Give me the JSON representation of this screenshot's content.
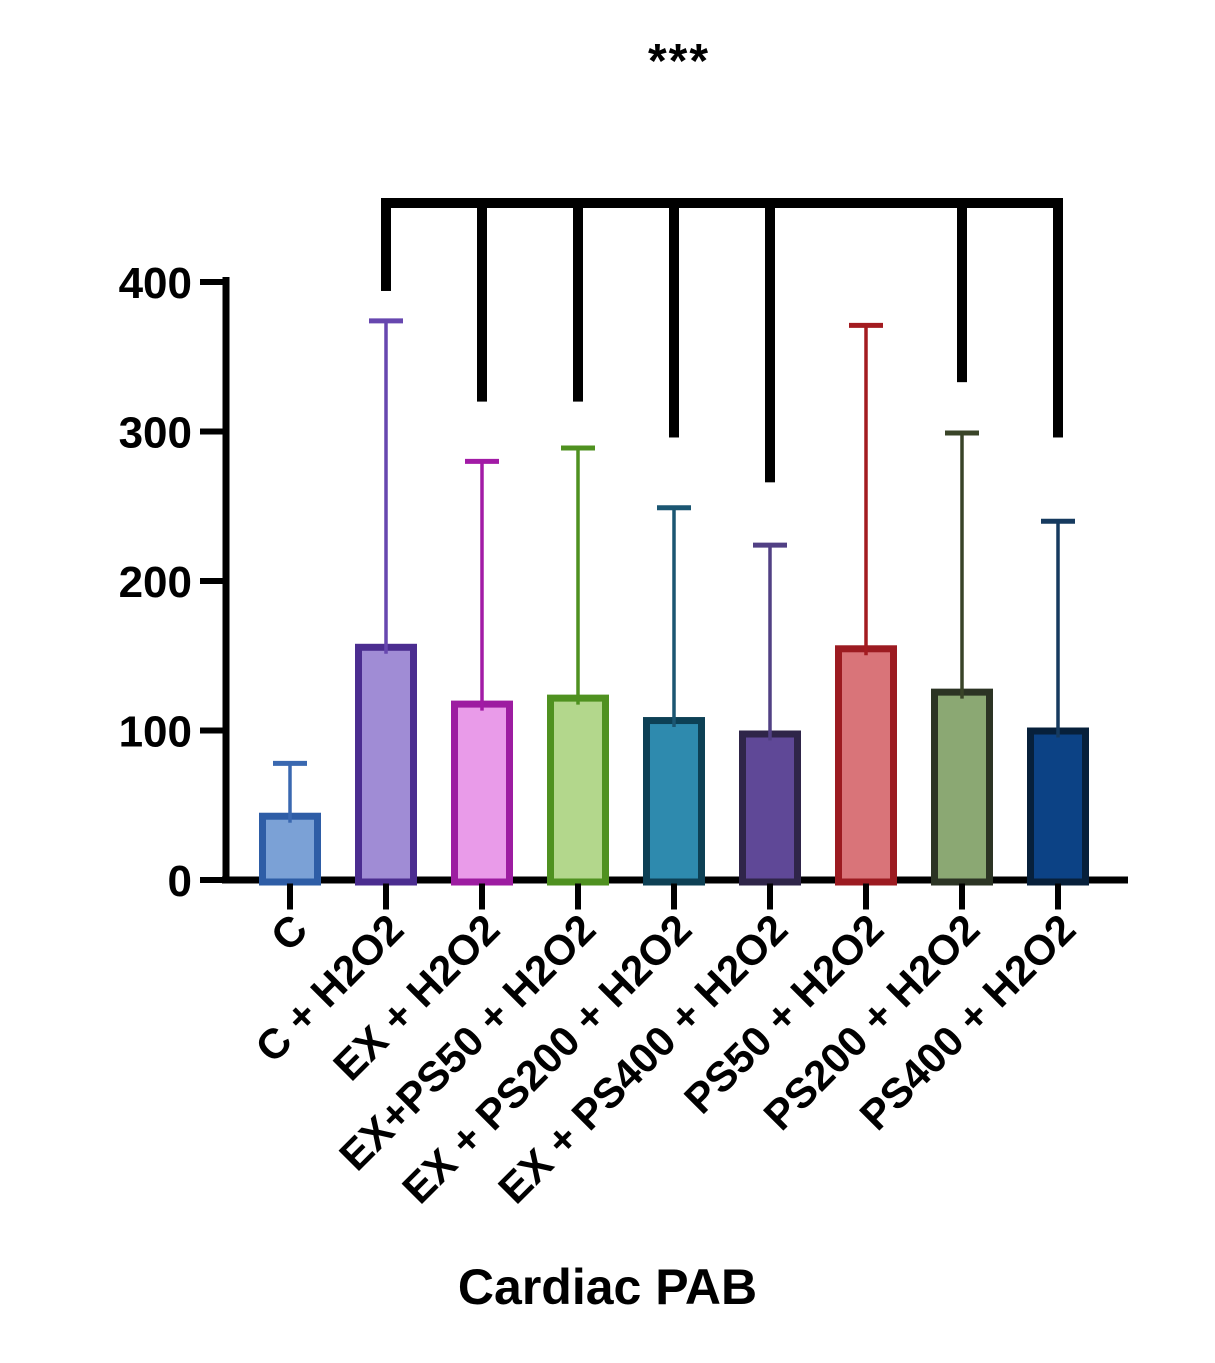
{
  "chart_data": {
    "type": "bar",
    "title": "Cardiac PAB",
    "categories": [
      "C",
      "C + H2O2",
      "EX + H2O2",
      "EX+PS50 + H2O2",
      "EX + PS200 + H2O2",
      "EX + PS400 + H2O2",
      "PS50 + H2O2",
      "PS200 + H2O2",
      "PS400 + H2O2"
    ],
    "values": [
      45,
      158,
      120,
      124,
      109,
      100,
      157,
      128,
      102
    ],
    "errors_upper": [
      78,
      374,
      280,
      289,
      249,
      224,
      371,
      299,
      240
    ],
    "ylim": [
      0,
      400
    ],
    "y_ticks": [
      0,
      100,
      200,
      300,
      400
    ],
    "grid": "off",
    "legend": "none",
    "bar_styles": [
      {
        "fill": "#7BA1D6",
        "border": "#2E5DA6",
        "error": "#3A68B0"
      },
      {
        "fill": "#A08CD5",
        "border": "#4B2D90",
        "error": "#6747AF"
      },
      {
        "fill": "#E99BE9",
        "border": "#9D1CA1",
        "error": "#A21BA6"
      },
      {
        "fill": "#B3D78C",
        "border": "#4F9120",
        "error": "#4F9120"
      },
      {
        "fill": "#2E8AAE",
        "border": "#0D4055",
        "error": "#1B5672"
      },
      {
        "fill": "#5F4897",
        "border": "#2F2549",
        "error": "#514084"
      },
      {
        "fill": "#D97479",
        "border": "#9C1B21",
        "error": "#A31B20"
      },
      {
        "fill": "#8BA873",
        "border": "#2C3424",
        "error": "#394428"
      },
      {
        "fill": "#0C4285",
        "border": "#07203B",
        "error": "#163A5F"
      }
    ],
    "significance": {
      "label": "***",
      "bracket_color": "#000000",
      "bracket_top_value": 453,
      "anchors": [
        {
          "index": 1,
          "drop_to_value": 394
        },
        {
          "index": 2,
          "drop_to_value": 320
        },
        {
          "index": 3,
          "drop_to_value": 320
        },
        {
          "index": 4,
          "drop_to_value": 296
        },
        {
          "index": 5,
          "drop_to_value": 266
        },
        {
          "index": 7,
          "drop_to_value": 333
        },
        {
          "index": 8,
          "drop_to_value": 296
        }
      ]
    }
  }
}
